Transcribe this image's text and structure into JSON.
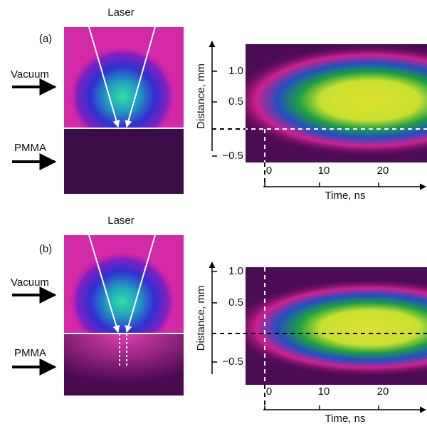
{
  "panels": [
    {
      "label": "(a)",
      "laser": "Laser",
      "vacuum": "Vacuum",
      "pmma": "PMMA",
      "y_axis_label": "Distance, mm",
      "yticks": [
        "1.0",
        "0.5",
        "−0.5"
      ],
      "xticks": [
        "0",
        "10",
        "20"
      ],
      "x_axis_label": "Time, ns"
    },
    {
      "label": "(b)",
      "laser": "Laser",
      "vacuum": "Vacuum",
      "pmma": "PMMA",
      "y_axis_label": "Distance, mm",
      "yticks": [
        "1.0",
        "0.5",
        "−0.5"
      ],
      "xticks": [
        "0",
        "10",
        "20"
      ],
      "x_axis_label": "Time, ns"
    }
  ]
}
